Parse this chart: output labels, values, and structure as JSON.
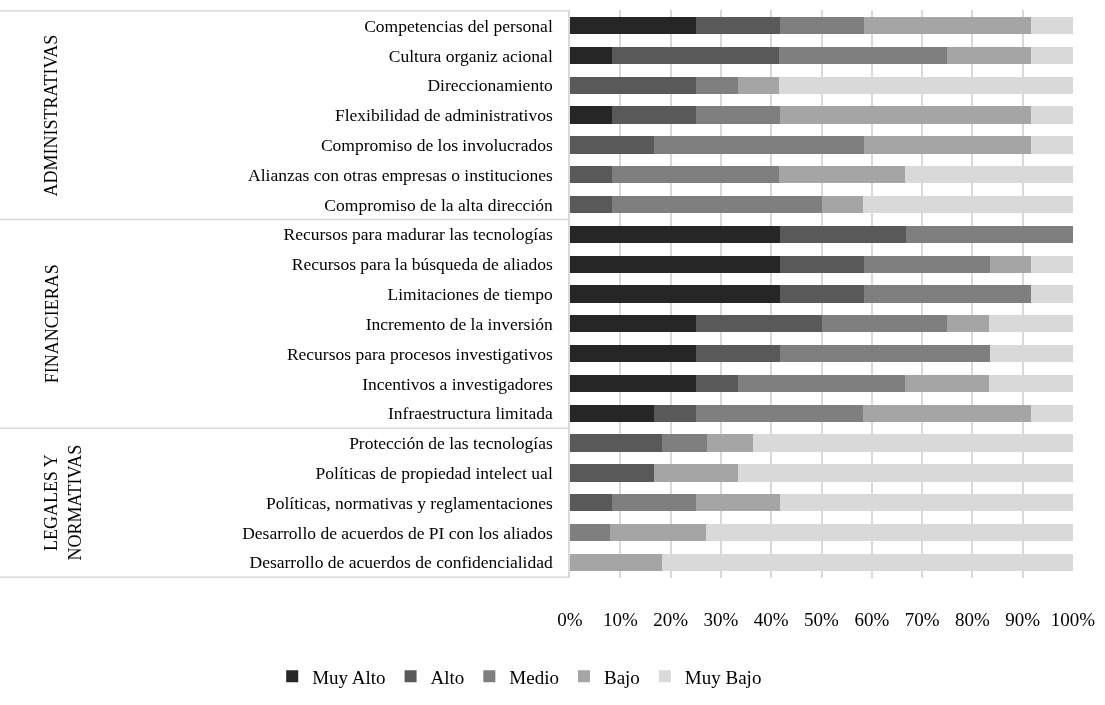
{
  "chart_data": {
    "type": "bar",
    "orientation": "horizontal",
    "stacked": true,
    "categories": [
      "Competencias del personal",
      "Cultura organiz acional",
      "Direccionamiento",
      "Flexibilidad de administrativos",
      "Compromiso de los involucrados",
      "Alianzas con otras empresas o instituciones",
      "Compromiso de la alta dirección",
      "Recursos para madurar las tecnologías",
      "Recursos para la búsqueda de aliados",
      "Limitaciones de tiempo",
      "Incremento de la inversión",
      "Recursos para procesos investigativos",
      "Incentivos a investigadores",
      "Infraestructura limitada",
      "Protección de las tecnologías",
      "Políticas de propiedad intelect ual",
      "Políticas, normativas y reglamentaciones",
      "Desarrollo de acuerdos de PI con los aliados",
      "Desarrollo de acuerdos de confidencialidad"
    ],
    "series": [
      {
        "name": "Muy Alto",
        "color": "#262626",
        "values": [
          25,
          8.3,
          0,
          8.3,
          0,
          0,
          0,
          41.7,
          41.7,
          41.7,
          25,
          25,
          25,
          16.7,
          0,
          0,
          0,
          0,
          0
        ]
      },
      {
        "name": "Alto",
        "color": "#595959",
        "values": [
          16.7,
          33.3,
          25,
          16.7,
          16.7,
          8.3,
          8.3,
          25,
          16.7,
          16.7,
          25,
          16.7,
          8.3,
          8.3,
          18.2,
          16.7,
          8.3,
          0,
          0
        ]
      },
      {
        "name": "Medio",
        "color": "#7f7f7f",
        "values": [
          16.7,
          33.3,
          8.3,
          16.7,
          41.7,
          33.3,
          41.7,
          33.3,
          25,
          33.3,
          25,
          41.7,
          33.3,
          33.3,
          9.1,
          0,
          16.7,
          8,
          0
        ]
      },
      {
        "name": "Bajo",
        "color": "#a5a5a5",
        "values": [
          33.3,
          16.7,
          8.3,
          50,
          33.3,
          25,
          8.3,
          0,
          8.3,
          0,
          8.3,
          0,
          16.7,
          33.3,
          9.1,
          16.7,
          16.7,
          19,
          18.2
        ]
      },
      {
        "name": "Muy Bajo",
        "color": "#d9d9d9",
        "values": [
          8.3,
          8.3,
          58.3,
          8.3,
          8.3,
          33.3,
          41.7,
          0,
          8.3,
          8.3,
          16.7,
          16.7,
          16.7,
          8.3,
          63.6,
          66.7,
          58.3,
          73,
          81.8
        ]
      }
    ],
    "xlim": [
      0,
      100
    ],
    "xticks": [
      {
        "value": 0,
        "label": "0%"
      },
      {
        "value": 10,
        "label": "10%"
      },
      {
        "value": 20,
        "label": "20%"
      },
      {
        "value": 30,
        "label": "30%"
      },
      {
        "value": 40,
        "label": "40%"
      },
      {
        "value": 50,
        "label": "50%"
      },
      {
        "value": 60,
        "label": "60%"
      },
      {
        "value": 70,
        "label": "70%"
      },
      {
        "value": 80,
        "label": "80%"
      },
      {
        "value": 90,
        "label": "90%"
      },
      {
        "value": 100,
        "label": "100%"
      }
    ],
    "grid": "x",
    "legend": "bottom",
    "annotations": [
      "ADMINISTRATIVAS",
      "FINANCIERAS",
      "LEGALES Y\nNORMATIVAS"
    ]
  }
}
